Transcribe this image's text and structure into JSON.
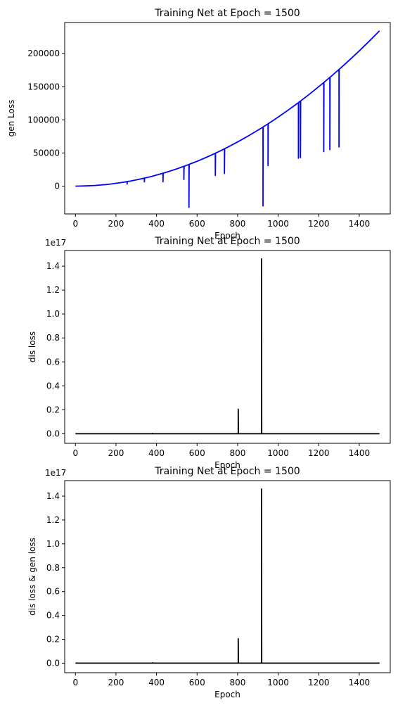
{
  "chart_data": [
    {
      "type": "line",
      "title": "Training Net at Epoch = 1500",
      "xlabel": "Epoch",
      "ylabel": "gen Loss",
      "xlim": [
        -53,
        1553
      ],
      "ylim": [
        -42000,
        247000
      ],
      "x_ticks": [
        0,
        200,
        400,
        600,
        800,
        1000,
        1200,
        1400
      ],
      "x_tick_labels": [
        "0",
        "200",
        "400",
        "600",
        "800",
        "1000",
        "1200",
        "1400"
      ],
      "y_ticks": [
        0,
        50000,
        100000,
        150000,
        200000
      ],
      "y_tick_labels": [
        "0",
        "50000",
        "100000",
        "150000",
        "200000"
      ],
      "offset_text": "",
      "grid": false,
      "series": [
        {
          "color": "#0000ff",
          "baseline": {
            "form": "quadratic",
            "x_range": [
              0,
              1500
            ],
            "coefficient": 0.1042,
            "x_step": 25
          },
          "spikes": [
            {
              "x": 255,
              "y": 3000
            },
            {
              "x": 340,
              "y": 6500
            },
            {
              "x": 432,
              "y": 6500
            },
            {
              "x": 535,
              "y": 10000
            },
            {
              "x": 560,
              "y": -32000
            },
            {
              "x": 690,
              "y": 16000
            },
            {
              "x": 735,
              "y": 19000
            },
            {
              "x": 925,
              "y": -30000
            },
            {
              "x": 950,
              "y": 31000
            },
            {
              "x": 1100,
              "y": 42000
            },
            {
              "x": 1110,
              "y": 43000
            },
            {
              "x": 1225,
              "y": 52000
            },
            {
              "x": 1255,
              "y": 55000
            },
            {
              "x": 1300,
              "y": 59000
            }
          ]
        }
      ]
    },
    {
      "type": "line",
      "title": "Training Net at Epoch = 1500",
      "xlabel": "Epoch",
      "ylabel": "dis loss",
      "xlim": [
        -53,
        1553
      ],
      "ylim": [
        -0.08,
        1.53
      ],
      "x_ticks": [
        0,
        200,
        400,
        600,
        800,
        1000,
        1200,
        1400
      ],
      "x_tick_labels": [
        "0",
        "200",
        "400",
        "600",
        "800",
        "1000",
        "1200",
        "1400"
      ],
      "y_ticks": [
        0.0,
        0.2,
        0.4,
        0.6,
        0.8,
        1.0,
        1.2,
        1.4
      ],
      "y_tick_labels": [
        "0.0",
        "0.2",
        "0.4",
        "0.6",
        "0.8",
        "1.0",
        "1.2",
        "1.4"
      ],
      "offset_text": "1e17",
      "grid": false,
      "series": [
        {
          "color": "#000000",
          "baseline_value": 0,
          "x_range": [
            0,
            1500
          ],
          "spikes": [
            {
              "x": 380,
              "y": 0.003
            },
            {
              "x": 803,
              "y": 0.205
            },
            {
              "x": 918,
              "y": 1.46
            }
          ]
        }
      ]
    },
    {
      "type": "line",
      "title": "Training Net at Epoch = 1500",
      "xlabel": "Epoch",
      "ylabel": "dis loss & gen loss",
      "xlim": [
        -53,
        1553
      ],
      "ylim": [
        -0.08,
        1.53
      ],
      "x_ticks": [
        0,
        200,
        400,
        600,
        800,
        1000,
        1200,
        1400
      ],
      "x_tick_labels": [
        "0",
        "200",
        "400",
        "600",
        "800",
        "1000",
        "1200",
        "1400"
      ],
      "y_ticks": [
        0.0,
        0.2,
        0.4,
        0.6,
        0.8,
        1.0,
        1.2,
        1.4
      ],
      "y_tick_labels": [
        "0.0",
        "0.2",
        "0.4",
        "0.6",
        "0.8",
        "1.0",
        "1.2",
        "1.4"
      ],
      "offset_text": "1e17",
      "grid": false,
      "series": [
        {
          "color": "#000000",
          "baseline_value": 0,
          "x_range": [
            0,
            1500
          ],
          "spikes": [
            {
              "x": 380,
              "y": 0.003
            },
            {
              "x": 803,
              "y": 0.205
            },
            {
              "x": 918,
              "y": 1.46
            }
          ]
        }
      ]
    }
  ]
}
